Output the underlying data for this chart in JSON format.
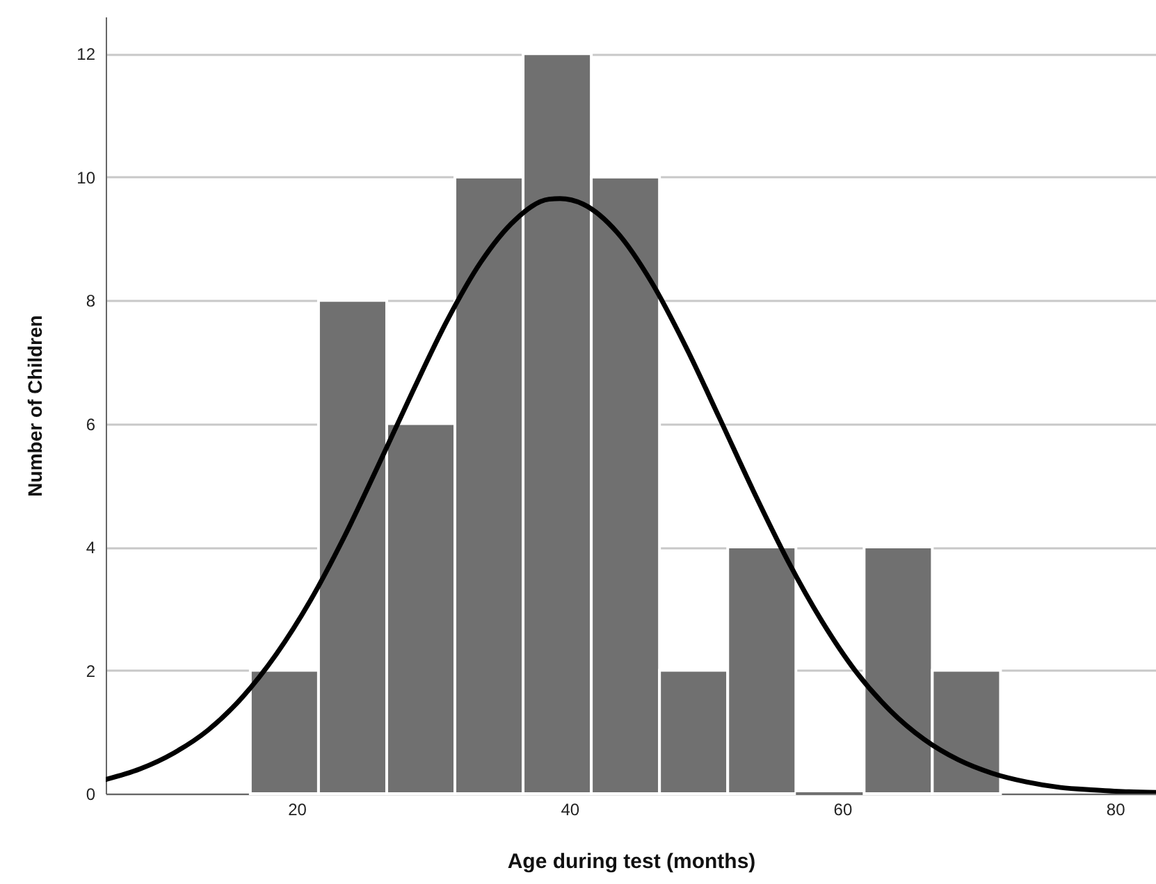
{
  "chart_data": {
    "type": "histogram",
    "xlabel": "Age during test (months)",
    "ylabel": "Number of Children",
    "bins": [
      16.6,
      21.6,
      26.6,
      31.6,
      36.6,
      41.6,
      46.6,
      51.6,
      56.6,
      61.6,
      66.6,
      71.6
    ],
    "values": [
      2,
      8,
      6,
      10,
      12,
      10,
      2,
      4,
      0,
      4,
      2
    ],
    "color": "#707070",
    "series": [
      {
        "type": "line",
        "color": "#000000",
        "x": [
          6,
          8.5,
          11,
          13.5,
          16,
          18.5,
          21,
          23.5,
          26,
          28.5,
          31,
          33.5,
          36,
          38.5,
          39.3,
          41,
          43.5,
          46,
          48.5,
          51,
          53.5,
          56,
          58.5,
          61,
          63.5,
          66,
          68.5,
          71,
          73.5,
          76,
          78.5,
          81,
          83
        ],
        "values": [
          0.23,
          0.4,
          0.66,
          1.03,
          1.56,
          2.26,
          3.13,
          4.17,
          5.33,
          6.52,
          7.66,
          8.62,
          9.3,
          9.64,
          9.65,
          9.56,
          9.1,
          8.3,
          7.26,
          6.09,
          4.9,
          3.78,
          2.8,
          1.98,
          1.35,
          0.88,
          0.55,
          0.33,
          0.19,
          0.1,
          0.06,
          0.03,
          0.02
        ]
      }
    ],
    "xlim": [
      6,
      83
    ],
    "ylim": [
      0,
      12.6
    ],
    "xticks": [
      20,
      40,
      60,
      80
    ],
    "yticks": [
      0,
      2,
      4,
      6,
      8,
      10,
      12
    ],
    "grid": "y"
  }
}
